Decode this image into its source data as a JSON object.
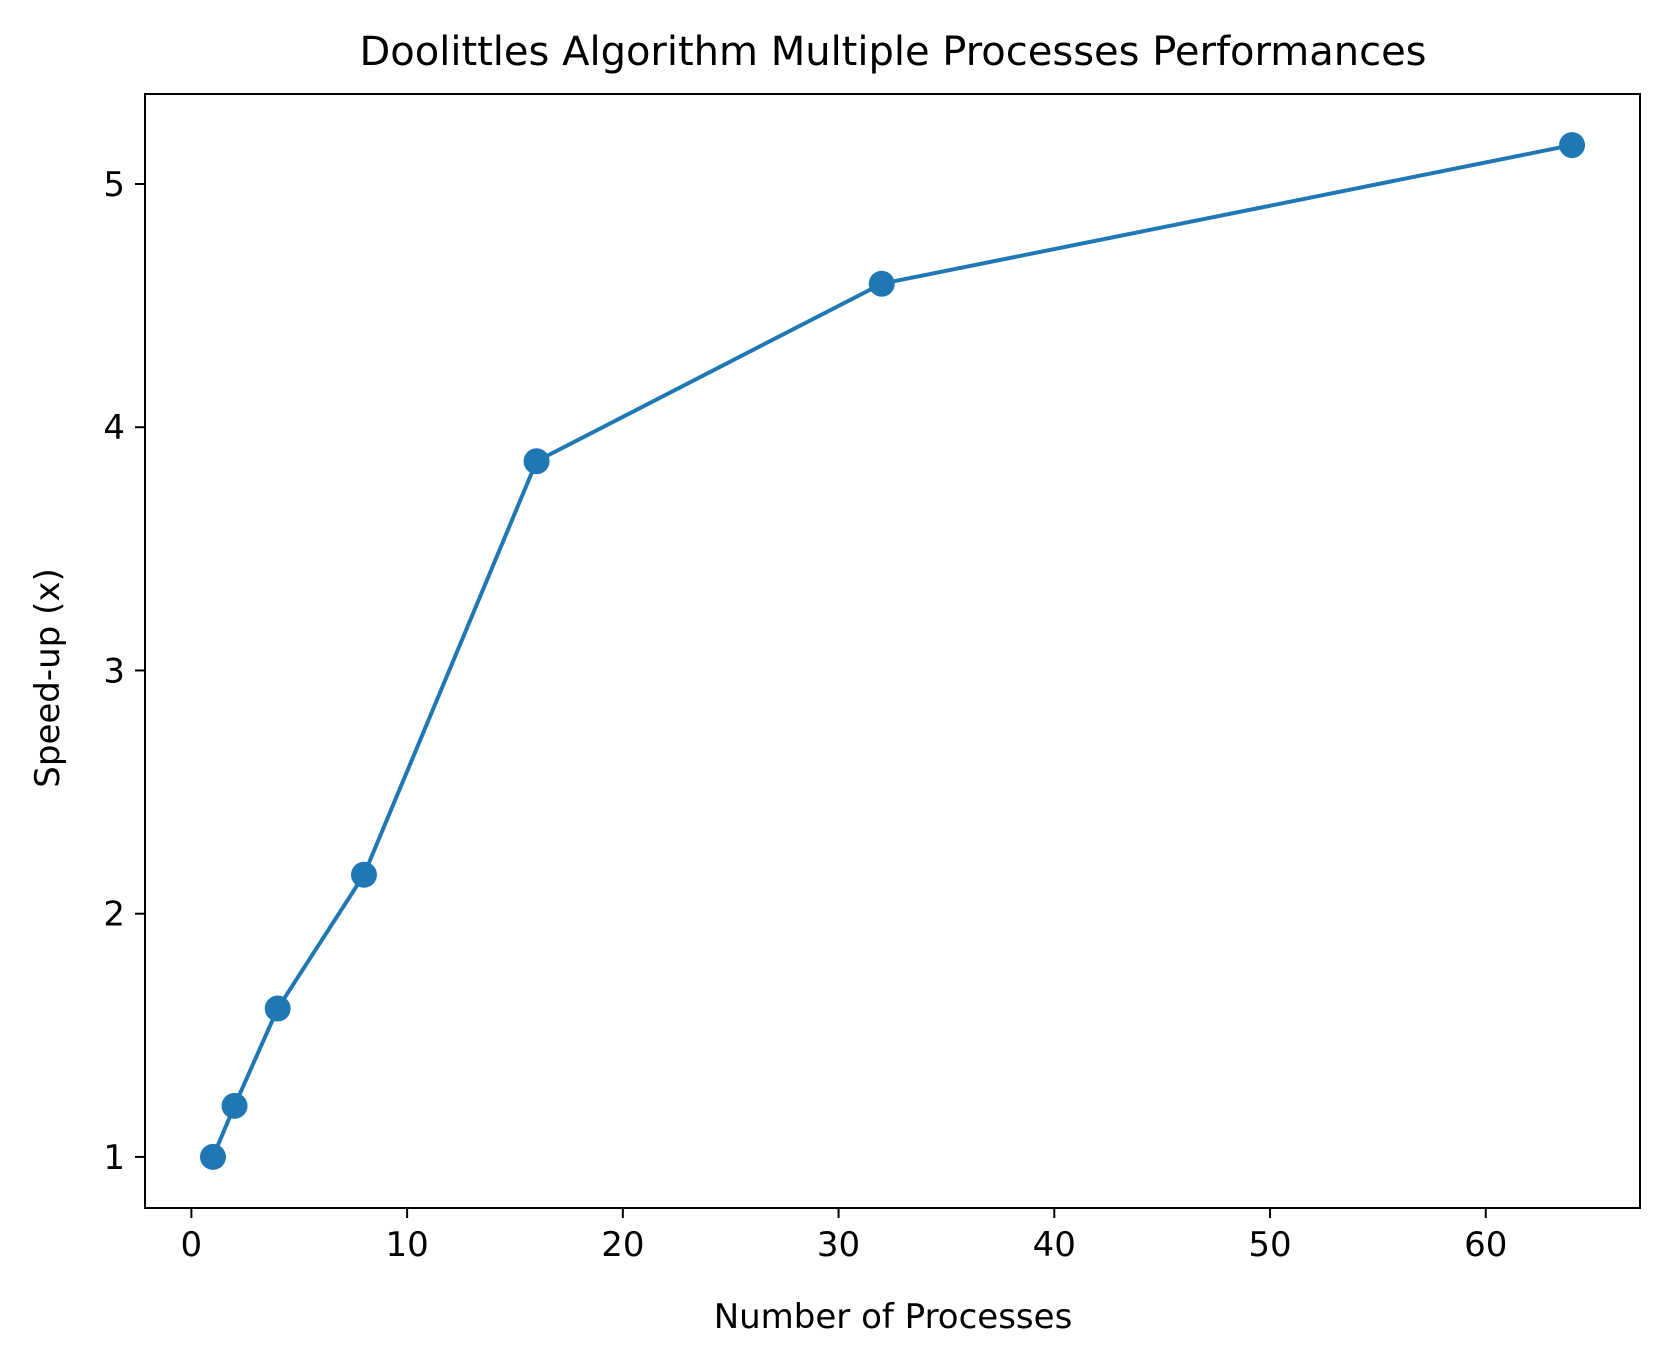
{
  "chart_data": {
    "type": "line",
    "title": "Doolittles Algorithm Multiple Processes Performances",
    "xlabel": "Number of Processes",
    "ylabel": "Speed-up (x)",
    "xlim": [
      -2.15,
      67.15
    ],
    "ylim": [
      0.79,
      5.37
    ],
    "xticks": [
      0,
      10,
      20,
      30,
      40,
      50,
      60
    ],
    "xtick_labels": [
      "0",
      "10",
      "20",
      "30",
      "40",
      "50",
      "60"
    ],
    "yticks": [
      1,
      2,
      3,
      4,
      5
    ],
    "ytick_labels": [
      "1",
      "2",
      "3",
      "4",
      "5"
    ],
    "grid": false,
    "legend": false,
    "series": [
      {
        "color": "#1f77b4",
        "marker": "circle",
        "x": [
          1,
          2,
          4,
          8,
          16,
          32,
          64
        ],
        "y": [
          1.0,
          1.21,
          1.61,
          2.16,
          3.86,
          4.59,
          5.16
        ]
      }
    ]
  }
}
